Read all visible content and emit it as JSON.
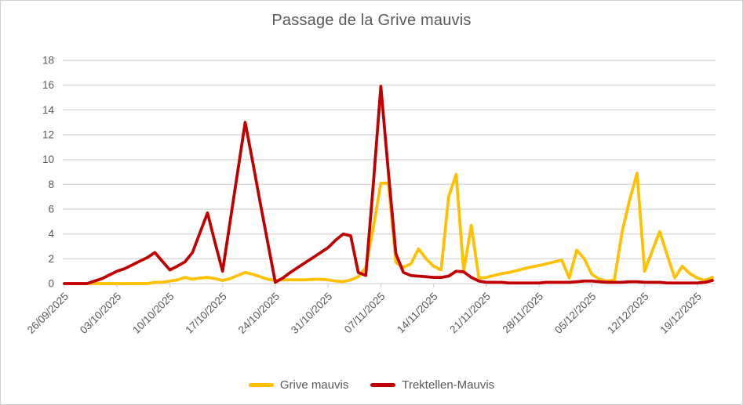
{
  "title": "Passage de la Grive mauvis",
  "colors": {
    "grive_mauvis": "#FFC000",
    "trektellen_mauvis": "#C00000",
    "gridline": "#D9D9D9",
    "axis_text": "#595959",
    "title_text": "#595959",
    "frame_border": "#CFCFCF"
  },
  "chart_data": {
    "type": "line",
    "title": "Passage de la Grive mauvis",
    "xlabel": "",
    "ylabel": "",
    "ylim": [
      0,
      18
    ],
    "y_ticks": [
      0,
      2,
      4,
      6,
      8,
      10,
      12,
      14,
      16,
      18
    ],
    "grid": "horizontal-only",
    "legend_position": "bottom-center",
    "x_tick_interval": 7,
    "x_tick_labels": [
      "26/09/2025",
      "03/10/2025",
      "10/10/2025",
      "17/10/2025",
      "24/10/2025",
      "31/10/2025",
      "07/11/2025",
      "14/11/2025",
      "21/11/2025",
      "28/11/2025",
      "05/12/2025",
      "12/12/2025",
      "19/12/2025"
    ],
    "x": [
      "26/09/2025",
      "27/09/2025",
      "28/09/2025",
      "29/09/2025",
      "30/09/2025",
      "01/10/2025",
      "02/10/2025",
      "03/10/2025",
      "04/10/2025",
      "05/10/2025",
      "06/10/2025",
      "07/10/2025",
      "08/10/2025",
      "09/10/2025",
      "10/10/2025",
      "11/10/2025",
      "12/10/2025",
      "13/10/2025",
      "14/10/2025",
      "15/10/2025",
      "16/10/2025",
      "17/10/2025",
      "18/10/2025",
      "19/10/2025",
      "20/10/2025",
      "21/10/2025",
      "22/10/2025",
      "23/10/2025",
      "24/10/2025",
      "25/10/2025",
      "26/10/2025",
      "27/10/2025",
      "28/10/2025",
      "29/10/2025",
      "30/10/2025",
      "31/10/2025",
      "01/11/2025",
      "02/11/2025",
      "03/11/2025",
      "04/11/2025",
      "05/11/2025",
      "06/11/2025",
      "07/11/2025",
      "08/11/2025",
      "09/11/2025",
      "10/11/2025",
      "11/11/2025",
      "12/11/2025",
      "13/11/2025",
      "14/11/2025",
      "15/11/2025",
      "16/11/2025",
      "17/11/2025",
      "18/11/2025",
      "19/11/2025",
      "20/11/2025",
      "21/11/2025",
      "22/11/2025",
      "23/11/2025",
      "24/11/2025",
      "25/11/2025",
      "26/11/2025",
      "27/11/2025",
      "28/11/2025",
      "29/11/2025",
      "30/11/2025",
      "01/12/2025",
      "02/12/2025",
      "03/12/2025",
      "04/12/2025",
      "05/12/2025",
      "06/12/2025",
      "07/12/2025",
      "08/12/2025",
      "09/12/2025",
      "10/12/2025",
      "11/12/2025",
      "12/12/2025",
      "13/12/2025",
      "14/12/2025",
      "15/12/2025",
      "16/12/2025",
      "17/12/2025",
      "18/12/2025",
      "19/12/2025",
      "20/12/2025",
      "21/12/2025"
    ],
    "series": [
      {
        "name": "Grive mauvis",
        "color": "#FFC000",
        "values": [
          0,
          0,
          0,
          0,
          0,
          0,
          0,
          0,
          0,
          0,
          0,
          0,
          0.1,
          0.1,
          0.2,
          0.3,
          0.5,
          0.35,
          0.45,
          0.5,
          0.4,
          0.25,
          0.4,
          0.65,
          0.9,
          0.75,
          0.55,
          0.35,
          0.25,
          0.3,
          0.3,
          0.3,
          0.3,
          0.35,
          0.35,
          0.3,
          0.2,
          0.15,
          0.3,
          0.55,
          1.3,
          4.5,
          8.1,
          8.1,
          1.7,
          1.3,
          1.6,
          2.8,
          2.0,
          1.4,
          1.1,
          7.0,
          8.8,
          1.0,
          4.7,
          0.45,
          0.5,
          0.65,
          0.8,
          0.9,
          1.05,
          1.2,
          1.35,
          1.45,
          1.6,
          1.75,
          1.9,
          0.45,
          2.7,
          2.0,
          0.75,
          0.35,
          0.2,
          0.3,
          4.1,
          6.7,
          8.9,
          1.0,
          2.6,
          4.2,
          2.3,
          0.45,
          1.4,
          0.8,
          0.45,
          0.25,
          0.5
        ]
      },
      {
        "name": "Trektellen-Mauvis",
        "color": "#C00000",
        "values": [
          0,
          0,
          0,
          0,
          0.2,
          0.4,
          0.7,
          1.0,
          1.2,
          1.5,
          1.8,
          2.1,
          2.5,
          1.8,
          1.1,
          1.4,
          1.75,
          2.5,
          4.1,
          5.7,
          3.3,
          1.0,
          5.0,
          9.0,
          13.0,
          9.8,
          6.5,
          3.3,
          0.1,
          0.45,
          0.9,
          1.3,
          1.7,
          2.1,
          2.5,
          2.9,
          3.5,
          4.0,
          3.85,
          0.9,
          0.65,
          8.0,
          15.9,
          9.0,
          2.4,
          0.9,
          0.65,
          0.6,
          0.55,
          0.5,
          0.5,
          0.6,
          1.0,
          0.95,
          0.5,
          0.2,
          0.1,
          0.1,
          0.1,
          0.05,
          0.05,
          0.05,
          0.05,
          0.05,
          0.1,
          0.1,
          0.1,
          0.1,
          0.15,
          0.2,
          0.2,
          0.15,
          0.1,
          0.1,
          0.1,
          0.15,
          0.15,
          0.1,
          0.1,
          0.1,
          0.05,
          0.05,
          0.05,
          0.05,
          0.05,
          0.1,
          0.25
        ]
      }
    ]
  }
}
